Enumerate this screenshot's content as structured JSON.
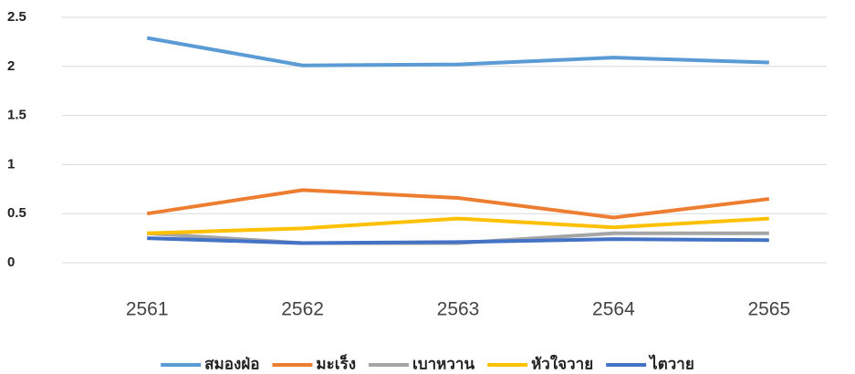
{
  "chart_data": {
    "type": "line",
    "categories": [
      "2561",
      "2562",
      "2563",
      "2564",
      "2565"
    ],
    "series": [
      {
        "name": "สมองฝ่อ",
        "color": "#5b9bd5",
        "values": [
          2.29,
          2.01,
          2.02,
          2.09,
          2.04
        ]
      },
      {
        "name": "มะเร็ง",
        "color": "#ed7d31",
        "values": [
          0.5,
          0.74,
          0.66,
          0.46,
          0.65
        ]
      },
      {
        "name": "เบาหวาน",
        "color": "#a5a5a5",
        "values": [
          0.3,
          0.2,
          0.2,
          0.3,
          0.3
        ]
      },
      {
        "name": "หัวใจวาย",
        "color": "#ffc000",
        "values": [
          0.3,
          0.35,
          0.45,
          0.36,
          0.45
        ]
      },
      {
        "name": "ไตวาย",
        "color": "#4472c4",
        "values": [
          0.25,
          0.2,
          0.21,
          0.24,
          0.23
        ]
      }
    ],
    "ylim": [
      0,
      2.5
    ],
    "yticks": [
      0,
      0.5,
      1,
      1.5,
      2,
      2.5
    ],
    "grid": true,
    "legend": "bottom"
  }
}
